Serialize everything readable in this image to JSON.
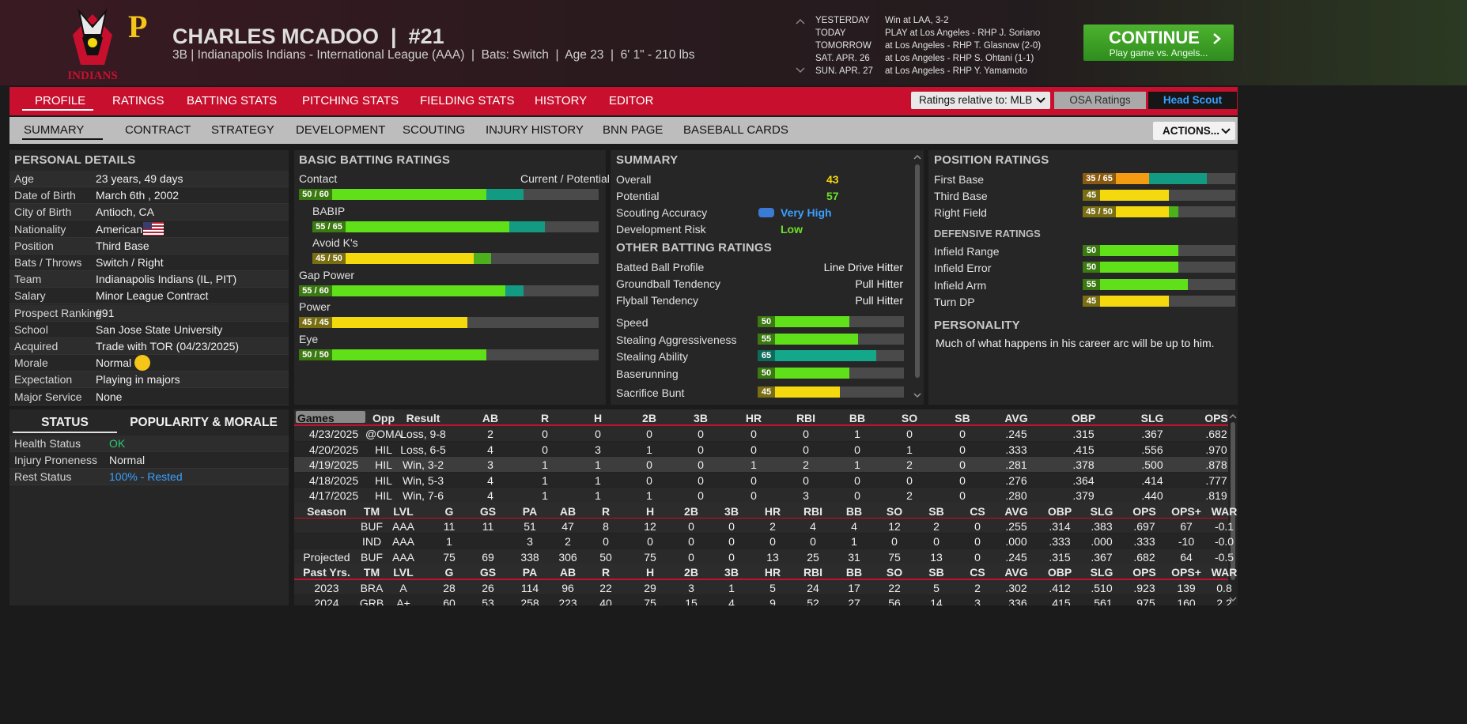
{
  "header": {
    "logo_text": "INDIANS",
    "affiliate_logo": "P",
    "name": "CHARLES MCADOO  |  #21",
    "subtitle": "3B | Indianapolis Indians - International League (AAA)  |  Bats: Switch  |  Age 23  |  6' 1\" - 210 lbs"
  },
  "schedule": [
    {
      "day": "YESTERDAY",
      "event": "Win at LAA, 3-2"
    },
    {
      "day": "TODAY",
      "event": "PLAY at Los Angeles - RHP J. Soriano"
    },
    {
      "day": "TOMORROW",
      "event": "at Los Angeles - RHP T. Glasnow (2-0)"
    },
    {
      "day": "SAT. APR. 26",
      "event": "at Los Angeles - RHP S. Ohtani (1-1)"
    },
    {
      "day": "SUN. APR. 27",
      "event": "at Los Angeles - RHP Y. Yamamoto"
    }
  ],
  "continue_button": {
    "label": "CONTINUE",
    "sublabel": "Play game vs. Angels..."
  },
  "main_tabs": {
    "items": [
      "PROFILE",
      "RATINGS",
      "BATTING STATS",
      "PITCHING STATS",
      "FIELDING STATS",
      "HISTORY",
      "EDITOR"
    ],
    "active": 0
  },
  "sub_tabs": {
    "items": [
      "SUMMARY",
      "CONTRACT",
      "STRATEGY",
      "DEVELOPMENT",
      "SCOUTING",
      "INJURY HISTORY",
      "BNN PAGE",
      "BASEBALL CARDS"
    ],
    "active": 0
  },
  "ratings_relative": "Ratings relative to: MLB",
  "osa_ratings": "OSA Ratings",
  "head_scout": "Head Scout",
  "actions": "ACTIONS...",
  "personal_details": {
    "title": "PERSONAL DETAILS",
    "rows": [
      [
        "Age",
        "23 years, 49 days"
      ],
      [
        "Date of Birth",
        "March 6th , 2002"
      ],
      [
        "City of Birth",
        "Antioch, CA"
      ],
      [
        "Nationality",
        "American"
      ],
      [
        "Position",
        "Third Base"
      ],
      [
        "Bats / Throws",
        "Switch / Right"
      ],
      [
        "Team",
        "Indianapolis Indians (IL, PIT)"
      ],
      [
        "Salary",
        "Minor League Contract"
      ],
      [
        "Prospect Ranking",
        "#91"
      ],
      [
        "School",
        "San Jose State University"
      ],
      [
        "Acquired",
        "Trade with TOR (04/23/2025)"
      ],
      [
        "Morale",
        "Normal"
      ],
      [
        "Expectation",
        "Playing in majors"
      ],
      [
        "Major Service",
        "None"
      ]
    ]
  },
  "basic_batting": {
    "title": "BASIC BATTING RATINGS",
    "column_label": "Current / Potential",
    "ratings": [
      {
        "name": "Contact",
        "label": "50 / 60",
        "current": 50,
        "potential": 60,
        "sub": false
      },
      {
        "name": "BABIP",
        "label": "55 / 65",
        "current": 55,
        "potential": 65,
        "sub": true
      },
      {
        "name": "Avoid K's",
        "label": "45 / 50",
        "current": 45,
        "potential": 50,
        "sub": true
      },
      {
        "name": "Gap Power",
        "label": "55 / 60",
        "current": 55,
        "potential": 60,
        "sub": false
      },
      {
        "name": "Power",
        "label": "45 / 45",
        "current": 45,
        "potential": 45,
        "sub": false
      },
      {
        "name": "Eye",
        "label": "50 / 50",
        "current": 50,
        "potential": 50,
        "sub": false
      }
    ]
  },
  "summary": {
    "title": "SUMMARY",
    "rows": [
      {
        "name": "Overall",
        "value": 43,
        "color": "#f5d90f"
      },
      {
        "name": "Potential",
        "value": 57,
        "color": "#6ee02a"
      },
      {
        "name": "Scouting Accuracy",
        "value": "Very High",
        "color": "#3aa0ff"
      },
      {
        "name": "Development Risk",
        "value": "Low",
        "color": "#6ee02a"
      }
    ]
  },
  "other_batting": {
    "title": "OTHER BATTING RATINGS",
    "rows": [
      {
        "name": "Batted Ball Profile",
        "value": "Line Drive Hitter"
      },
      {
        "name": "Groundball Tendency",
        "value": "Pull Hitter"
      },
      {
        "name": "Flyball Tendency",
        "value": "Pull Hitter"
      }
    ],
    "ratings": [
      {
        "name": "Speed",
        "current": 50
      },
      {
        "name": "Stealing Aggressiveness",
        "current": 55
      },
      {
        "name": "Stealing Ability",
        "current": 65
      },
      {
        "name": "Baserunning",
        "current": 50
      },
      {
        "name": "Sacrifice Bunt",
        "current": 45
      }
    ]
  },
  "position_ratings": {
    "title": "POSITION RATINGS",
    "ratings": [
      {
        "name": "First Base",
        "label": "35 / 65",
        "current": 35,
        "potential": 65
      },
      {
        "name": "Third Base",
        "current": 45
      },
      {
        "name": "Right Field",
        "label": "45 / 50",
        "current": 45,
        "potential": 50
      }
    ]
  },
  "defensive_ratings": {
    "title": "DEFENSIVE RATINGS",
    "ratings": [
      {
        "name": "Infield Range",
        "current": 50
      },
      {
        "name": "Infield Error",
        "current": 50
      },
      {
        "name": "Infield Arm",
        "current": 55
      },
      {
        "name": "Turn DP",
        "current": 45
      }
    ]
  },
  "personality": {
    "title": "PERSONALITY",
    "text": "Much of what happens in his career arc will be up to him."
  },
  "status": {
    "tabs": [
      "STATUS",
      "POPULARITY & MORALE"
    ],
    "rows": [
      {
        "name": "Health Status",
        "value": "OK",
        "color": "#2ecc71"
      },
      {
        "name": "Injury Proneness",
        "value": "Normal",
        "color": "#e8e8e8"
      },
      {
        "name": "Rest Status",
        "value": "100% - Rested",
        "color": "#3aa0ff"
      }
    ]
  },
  "game_log": {
    "columns": [
      "Games",
      "Opp",
      "Result",
      "AB",
      "R",
      "H",
      "2B",
      "3B",
      "HR",
      "RBI",
      "BB",
      "SO",
      "SB",
      "AVG",
      "OBP",
      "SLG",
      "OPS"
    ],
    "rows": [
      [
        "4/23/2025",
        "@OMA",
        "Loss, 9-8",
        "2",
        "0",
        "0",
        "0",
        "0",
        "0",
        "0",
        "1",
        "0",
        "0",
        ".245",
        ".315",
        ".367",
        ".682"
      ],
      [
        "4/20/2025",
        "HIL",
        "Loss, 6-5",
        "4",
        "0",
        "3",
        "1",
        "0",
        "0",
        "0",
        "0",
        "1",
        "0",
        ".333",
        ".415",
        ".556",
        ".970"
      ],
      [
        "4/19/2025",
        "HIL",
        "Win, 3-2",
        "3",
        "1",
        "1",
        "0",
        "0",
        "1",
        "2",
        "1",
        "2",
        "0",
        ".281",
        ".378",
        ".500",
        ".878"
      ],
      [
        "4/18/2025",
        "HIL",
        "Win, 5-3",
        "4",
        "1",
        "1",
        "0",
        "0",
        "0",
        "0",
        "0",
        "0",
        "0",
        ".276",
        ".364",
        ".414",
        ".777"
      ],
      [
        "4/17/2025",
        "HIL",
        "Win, 7-6",
        "4",
        "1",
        "1",
        "1",
        "0",
        "0",
        "3",
        "0",
        "2",
        "0",
        ".280",
        ".379",
        ".440",
        ".819"
      ]
    ]
  },
  "season_stats": {
    "columns": [
      "Season",
      "TM",
      "LVL",
      "G",
      "GS",
      "PA",
      "AB",
      "R",
      "H",
      "2B",
      "3B",
      "HR",
      "RBI",
      "BB",
      "SO",
      "SB",
      "CS",
      "AVG",
      "OBP",
      "SLG",
      "OPS",
      "OPS+",
      "WAR"
    ],
    "rows": [
      [
        null,
        "BUF",
        "AAA",
        "11",
        "11",
        "51",
        "47",
        "8",
        "12",
        "0",
        "0",
        "2",
        "4",
        "4",
        "12",
        "2",
        "0",
        ".255",
        ".314",
        ".383",
        ".697",
        "67",
        "-0.1"
      ],
      [
        null,
        "IND",
        "AAA",
        "1",
        null,
        "3",
        "2",
        "0",
        "0",
        "0",
        "0",
        "0",
        "0",
        "1",
        "0",
        "0",
        "0",
        ".000",
        ".333",
        ".000",
        ".333",
        "-10",
        "-0.0"
      ],
      [
        "Projected",
        "BUF",
        "AAA",
        "75",
        "69",
        "338",
        "306",
        "50",
        "75",
        "0",
        "0",
        "13",
        "25",
        "31",
        "75",
        "13",
        "0",
        ".245",
        ".315",
        ".367",
        ".682",
        "64",
        "-0.5"
      ]
    ]
  },
  "past_years": {
    "columns": [
      "Past Yrs.",
      "TM",
      "LVL",
      "G",
      "GS",
      "PA",
      "AB",
      "R",
      "H",
      "2B",
      "3B",
      "HR",
      "RBI",
      "BB",
      "SO",
      "SB",
      "CS",
      "AVG",
      "OBP",
      "SLG",
      "OPS",
      "OPS+",
      "WAR"
    ],
    "rows": [
      [
        "2023",
        "BRA",
        "A",
        "28",
        "26",
        "114",
        "96",
        "22",
        "29",
        "3",
        "1",
        "5",
        "24",
        "17",
        "22",
        "5",
        "2",
        ".302",
        ".412",
        ".510",
        ".923",
        "139",
        "0.8"
      ],
      [
        "2024",
        "GRB",
        "A+",
        "60",
        "53",
        "258",
        "223",
        "40",
        "75",
        "15",
        "4",
        "9",
        "52",
        "27",
        "56",
        "14",
        "3",
        ".336",
        ".415",
        ".561",
        ".975",
        "160",
        "2.2"
      ]
    ]
  }
}
